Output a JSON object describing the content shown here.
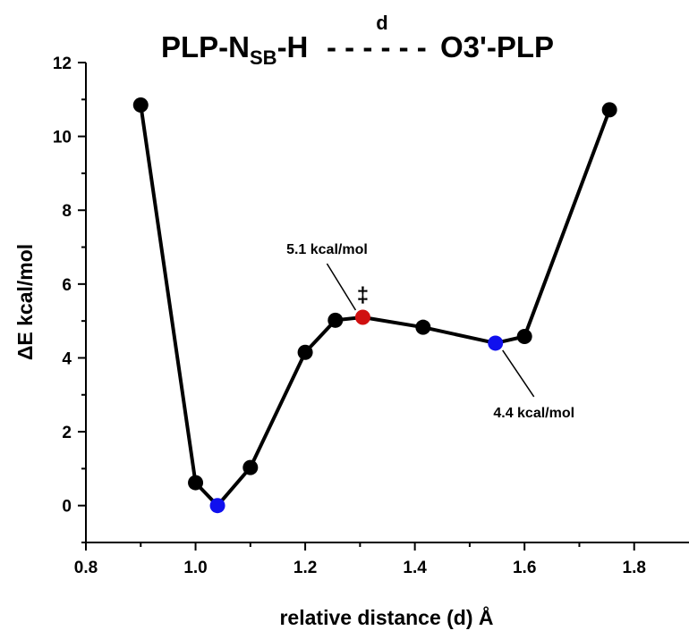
{
  "chart_data": {
    "type": "scatter",
    "title": {
      "left_main": "PLP-N",
      "left_sub": "SB",
      "left_end": "-H",
      "dashes": "- - - - - -",
      "right": "O3'-PLP",
      "dist_label": "d"
    },
    "xlabel": "relative distance (d) Å",
    "ylabel": "ΔE kcal/mol",
    "xlim": [
      0.8,
      1.9
    ],
    "ylim": [
      -1,
      12
    ],
    "xticks": [
      0.8,
      1.0,
      1.2,
      1.4,
      1.6,
      1.8
    ],
    "xtick_labels": [
      "0.8",
      "1.0",
      "1.2",
      "1.4",
      "1.6",
      "1.8"
    ],
    "yticks": [
      0,
      2,
      4,
      6,
      8,
      10,
      12
    ],
    "ytick_labels": [
      "0",
      "2",
      "4",
      "6",
      "8",
      "10",
      "12"
    ],
    "series": [
      {
        "x": [
          0.9,
          1.0,
          1.04,
          1.1,
          1.2,
          1.255,
          1.305,
          1.415,
          1.547,
          1.6,
          1.755
        ],
        "y": [
          10.85,
          0.62,
          0.0,
          1.03,
          4.15,
          5.02,
          5.1,
          4.83,
          4.4,
          4.58,
          10.72
        ],
        "colors": [
          "#000000",
          "#000000",
          "#1010ee",
          "#000000",
          "#000000",
          "#000000",
          "#d01010",
          "#000000",
          "#1010ee",
          "#000000",
          "#000000"
        ]
      }
    ],
    "annotations": [
      {
        "text": "5.1 kcal/mol",
        "point_index": 6
      },
      {
        "text": "4.4 kcal/mol",
        "point_index": 8
      },
      {
        "text": "‡",
        "point_index": 6
      }
    ],
    "colors": {
      "line": "#000000",
      "minimum": "#1010ee",
      "transition_state": "#d01010",
      "point": "#000000"
    },
    "grid": false,
    "legend": "none"
  }
}
